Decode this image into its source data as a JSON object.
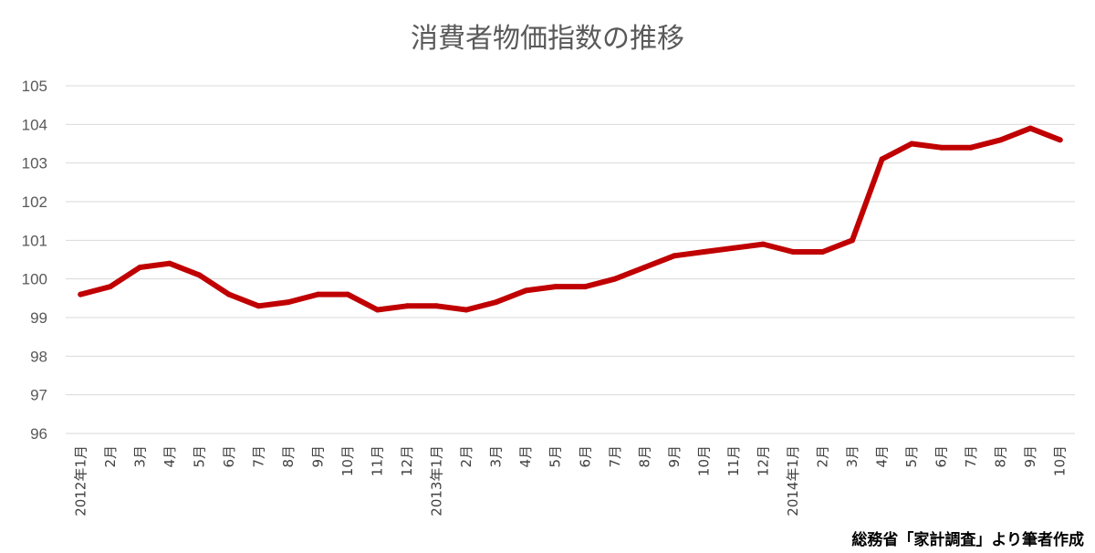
{
  "chart_data": {
    "type": "line",
    "title": "消費者物価指数の推移",
    "categories": [
      "2012年1月",
      "2月",
      "3月",
      "4月",
      "5月",
      "6月",
      "7月",
      "8月",
      "9月",
      "10月",
      "11月",
      "12月",
      "2013年1月",
      "2月",
      "3月",
      "4月",
      "5月",
      "6月",
      "7月",
      "8月",
      "9月",
      "10月",
      "11月",
      "12月",
      "2014年1月",
      "2月",
      "3月",
      "4月",
      "5月",
      "6月",
      "7月",
      "8月",
      "9月",
      "10月"
    ],
    "values": [
      99.6,
      99.8,
      100.3,
      100.4,
      100.1,
      99.6,
      99.3,
      99.4,
      99.6,
      99.6,
      99.2,
      99.3,
      99.3,
      99.2,
      99.4,
      99.7,
      99.8,
      99.8,
      100.0,
      100.3,
      100.6,
      100.7,
      100.8,
      100.9,
      100.7,
      100.7,
      101.0,
      103.1,
      103.5,
      103.4,
      103.4,
      103.6,
      103.9,
      103.6
    ],
    "ylim": [
      96,
      105
    ],
    "yticks": [
      96,
      97,
      98,
      99,
      100,
      101,
      102,
      103,
      104,
      105
    ],
    "grid": true,
    "line_color": "#c00000"
  },
  "source": "総務省「家計調査」より筆者作成"
}
